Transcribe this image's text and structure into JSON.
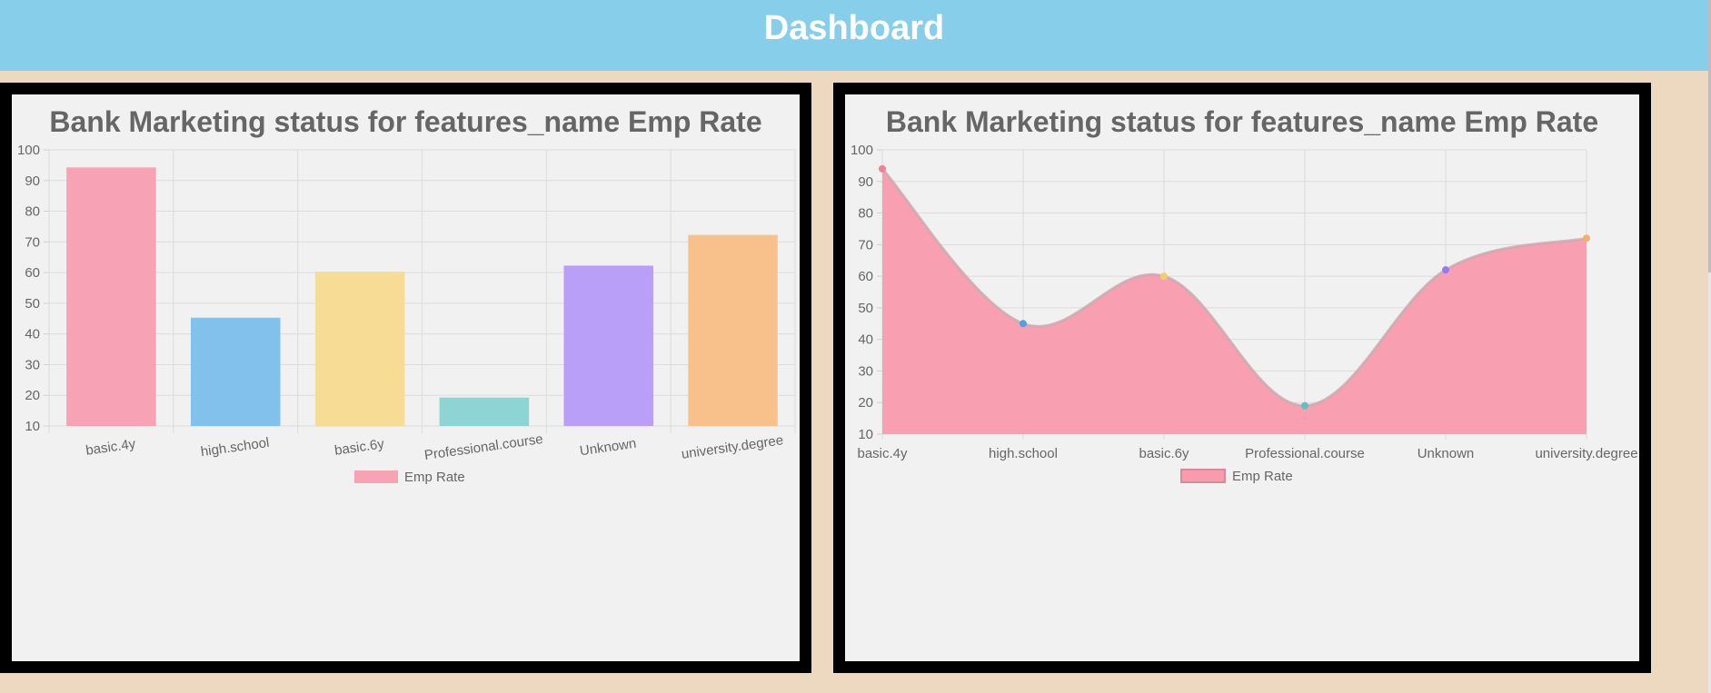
{
  "header": {
    "title": "Dashboard"
  },
  "charts": [
    {
      "title": "Bank Marketing status for features_name Emp Rate",
      "legend_label": "Emp Rate"
    },
    {
      "title": "Bank Marketing status for features_name Emp Rate",
      "legend_label": "Emp Rate"
    }
  ],
  "chart_data": [
    {
      "type": "bar",
      "title": "Bank Marketing status for features_name Emp Rate",
      "categories": [
        "basic.4y",
        "high.school",
        "basic.6y",
        "Professional.course",
        "Unknown",
        "university.degree"
      ],
      "series": [
        {
          "name": "Emp Rate",
          "values": [
            94,
            45,
            60,
            19,
            62,
            72
          ]
        }
      ],
      "ylim": [
        10,
        100
      ],
      "yticks": [
        100,
        90,
        80,
        70,
        60,
        50,
        40,
        30,
        20,
        10
      ],
      "colors": [
        "#f8a3b5",
        "#82c1ec",
        "#f7dc95",
        "#8ed4d4",
        "#b99ff8",
        "#f8c08a"
      ],
      "grid": true,
      "legend": "bottom"
    },
    {
      "type": "area",
      "title": "Bank Marketing status for features_name Emp Rate",
      "categories": [
        "basic.4y",
        "high.school",
        "basic.6y",
        "Professional.course",
        "Unknown",
        "university.degree"
      ],
      "series": [
        {
          "name": "Emp Rate",
          "values": [
            94,
            45,
            60,
            19,
            62,
            72
          ]
        }
      ],
      "ylim": [
        10,
        100
      ],
      "yticks": [
        100,
        90,
        80,
        70,
        60,
        50,
        40,
        30,
        20,
        10
      ],
      "fill_color": "#f89bae",
      "point_colors": [
        "#f57f99",
        "#4ba3e3",
        "#f2cf6b",
        "#5cc1c1",
        "#9b75f5",
        "#f5ae6b"
      ],
      "grid": true,
      "legend": "bottom"
    }
  ]
}
